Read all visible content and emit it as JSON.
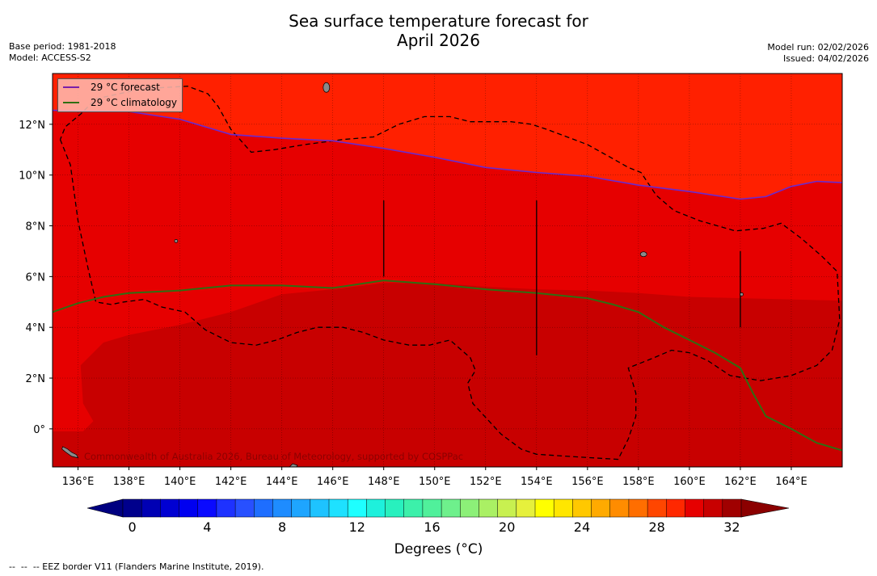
{
  "title": {
    "line1": "Sea surface temperature forecast for",
    "line2": "April 2026"
  },
  "meta": {
    "base_period": "Base period: 1981-2018",
    "model": "Model: ACCESS-S2",
    "model_run": "Model run: 02/02/2026",
    "issued": "Issued: 04/02/2026"
  },
  "legend": {
    "forecast_label": "29 °C  forecast",
    "forecast_color": "#7a1fa8",
    "climatology_label": "29 °C  climatology",
    "climatology_color": "#2f6e12"
  },
  "credit": "Commonwealth of Australia 2026, Bureau of Meteorology, supported by COSPPac",
  "colorbar": {
    "title": "Degrees (°C)",
    "tick_labels": [
      "0",
      "4",
      "8",
      "12",
      "16",
      "20",
      "24",
      "28",
      "32"
    ],
    "min": 0,
    "max": 32,
    "step": 1,
    "colors": [
      "#00008c",
      "#0000b4",
      "#0000d2",
      "#0000f0",
      "#0a0aff",
      "#1e32ff",
      "#2850ff",
      "#1e6eff",
      "#1e8cff",
      "#1ea5ff",
      "#1ec3ff",
      "#1ee1ff",
      "#1effff",
      "#1ef0dc",
      "#28f0be",
      "#3cf0aa",
      "#50f09b",
      "#6ef08c",
      "#8cf078",
      "#aaf064",
      "#c8f050",
      "#e6f03c",
      "#ffff00",
      "#ffe600",
      "#ffc800",
      "#ffaa00",
      "#ff8c00",
      "#ff6e00",
      "#ff4600",
      "#ff2800",
      "#e60000",
      "#c80000",
      "#a00000"
    ],
    "under_color": "#000080",
    "over_color": "#8b0000"
  },
  "map": {
    "lon_labels": [
      "136°E",
      "138°E",
      "140°E",
      "142°E",
      "144°E",
      "146°E",
      "148°E",
      "150°E",
      "152°E",
      "154°E",
      "156°E",
      "158°E",
      "160°E",
      "162°E",
      "164°E"
    ],
    "lon_values": [
      136,
      138,
      140,
      142,
      144,
      146,
      148,
      150,
      152,
      154,
      156,
      158,
      160,
      162,
      164
    ],
    "lat_labels": [
      "12°N",
      "10°N",
      "8°N",
      "6°N",
      "4°N",
      "2°N",
      "0°"
    ],
    "lat_values": [
      12,
      10,
      8,
      6,
      4,
      2,
      0
    ],
    "lon_range": [
      135,
      166
    ],
    "lat_range": [
      -1.5,
      14
    ],
    "region_colors": {
      "warm_28": "#ff2000",
      "warm_29": "#e60000",
      "warm_30": "#c80000"
    },
    "forecast_contour": [
      [
        135,
        12.55
      ],
      [
        138,
        12.5
      ],
      [
        140,
        12.2
      ],
      [
        142,
        11.6
      ],
      [
        144,
        11.45
      ],
      [
        146,
        11.35
      ],
      [
        148,
        11.05
      ],
      [
        150,
        10.7
      ],
      [
        152,
        10.3
      ],
      [
        154,
        10.1
      ],
      [
        156,
        9.95
      ],
      [
        158,
        9.6
      ],
      [
        160,
        9.35
      ],
      [
        162,
        9.05
      ],
      [
        163,
        9.15
      ],
      [
        164,
        9.55
      ],
      [
        165,
        9.75
      ],
      [
        166,
        9.7
      ]
    ],
    "climatology_contour": [
      [
        135,
        4.6
      ],
      [
        136,
        4.95
      ],
      [
        137,
        5.2
      ],
      [
        138,
        5.35
      ],
      [
        140,
        5.45
      ],
      [
        142,
        5.65
      ],
      [
        144,
        5.65
      ],
      [
        146,
        5.55
      ],
      [
        148,
        5.85
      ],
      [
        150,
        5.7
      ],
      [
        152,
        5.5
      ],
      [
        154,
        5.35
      ],
      [
        156,
        5.15
      ],
      [
        157,
        4.9
      ],
      [
        158,
        4.6
      ],
      [
        159,
        4.0
      ],
      [
        160,
        3.5
      ],
      [
        161,
        3.0
      ],
      [
        162,
        2.4
      ],
      [
        162.5,
        1.4
      ],
      [
        163,
        0.5
      ],
      [
        164,
        0.0
      ],
      [
        165,
        -0.55
      ],
      [
        166,
        -0.85
      ]
    ],
    "eez_border_1": [
      [
        135.3,
        11.4
      ],
      [
        135.7,
        10.4
      ],
      [
        136,
        8.2
      ],
      [
        136.4,
        6.3
      ],
      [
        136.7,
        5.0
      ],
      [
        137.3,
        4.9
      ],
      [
        137.8,
        5.0
      ],
      [
        138.6,
        5.1
      ],
      [
        139.3,
        4.8
      ],
      [
        140.2,
        4.6
      ],
      [
        141,
        3.9
      ],
      [
        142,
        3.4
      ],
      [
        143,
        3.3
      ],
      [
        143.8,
        3.5
      ],
      [
        144.6,
        3.8
      ],
      [
        145.4,
        4.0
      ],
      [
        146.4,
        4.0
      ],
      [
        147.2,
        3.8
      ],
      [
        148,
        3.5
      ],
      [
        149,
        3.3
      ],
      [
        149.8,
        3.3
      ],
      [
        150.6,
        3.5
      ],
      [
        151.4,
        2.8
      ],
      [
        151.6,
        2.3
      ],
      [
        151.3,
        1.8
      ],
      [
        151.5,
        1.0
      ],
      [
        152.6,
        -0.2
      ],
      [
        153.4,
        -0.8
      ],
      [
        154,
        -1.0
      ],
      [
        155.5,
        -1.1
      ],
      [
        157.2,
        -1.2
      ],
      [
        157.6,
        -0.4
      ],
      [
        157.9,
        0.5
      ],
      [
        157.9,
        1.4
      ],
      [
        157.6,
        2.4
      ],
      [
        158.6,
        2.8
      ],
      [
        159.3,
        3.1
      ],
      [
        160,
        3.0
      ],
      [
        160.7,
        2.7
      ],
      [
        161.6,
        2.1
      ],
      [
        162.8,
        1.9
      ],
      [
        164,
        2.1
      ],
      [
        165,
        2.5
      ],
      [
        165.6,
        3.1
      ],
      [
        165.9,
        4.3
      ],
      [
        165.8,
        6.2
      ],
      [
        165.2,
        6.8
      ],
      [
        164.4,
        7.5
      ],
      [
        163.6,
        8.1
      ],
      [
        162.9,
        7.9
      ],
      [
        161.8,
        7.8
      ],
      [
        160.4,
        8.2
      ],
      [
        159.4,
        8.6
      ],
      [
        158.7,
        9.2
      ],
      [
        158.1,
        10.1
      ],
      [
        157.6,
        10.3
      ],
      [
        156.9,
        10.7
      ],
      [
        156,
        11.2
      ],
      [
        155.2,
        11.5
      ],
      [
        154.4,
        11.8
      ],
      [
        153.8,
        12.0
      ],
      [
        153,
        12.1
      ],
      [
        152.2,
        12.1
      ],
      [
        151.4,
        12.1
      ],
      [
        150.6,
        12.3
      ],
      [
        149.6,
        12.3
      ],
      [
        148.6,
        12.0
      ],
      [
        147.6,
        11.5
      ],
      [
        146.4,
        11.4
      ],
      [
        144.9,
        11.2
      ],
      [
        143.7,
        11.0
      ],
      [
        142.8,
        10.9
      ],
      [
        142.0,
        11.8
      ],
      [
        141.5,
        12.7
      ],
      [
        141.1,
        13.2
      ],
      [
        140.3,
        13.5
      ],
      [
        138.5,
        13.4
      ],
      [
        136.7,
        13.0
      ],
      [
        136.1,
        12.4
      ],
      [
        135.5,
        11.9
      ],
      [
        135.3,
        11.4
      ]
    ]
  }
}
